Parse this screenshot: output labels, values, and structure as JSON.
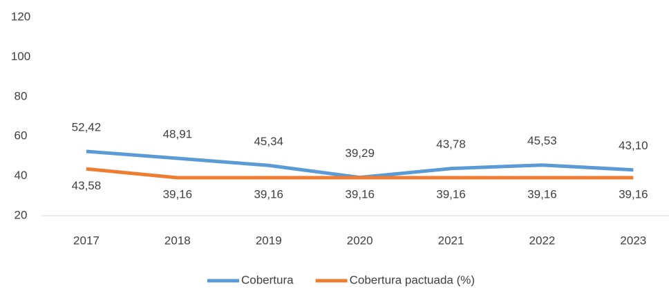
{
  "chart_data": {
    "type": "line",
    "categories": [
      "2017",
      "2018",
      "2019",
      "2020",
      "2021",
      "2022",
      "2023"
    ],
    "series": [
      {
        "name": "Cobertura",
        "color": "#5b9bd5",
        "values": [
          52.42,
          48.91,
          45.34,
          39.29,
          43.78,
          45.53,
          43.1
        ],
        "value_labels": [
          "52,42",
          "48,91",
          "45,34",
          "39,29",
          "43,78",
          "45,53",
          "43,10"
        ]
      },
      {
        "name": "Cobertura pactuada (%)",
        "color": "#ed7d31",
        "values": [
          43.58,
          39.16,
          39.16,
          39.16,
          39.16,
          39.16,
          39.16
        ],
        "value_labels": [
          "43,58",
          "39,16",
          "39,16",
          "39,16",
          "39,16",
          "39,16",
          "39,16"
        ]
      }
    ],
    "ylim": [
      20,
      120
    ],
    "yticks": [
      20,
      40,
      60,
      80,
      100,
      120
    ],
    "grid": false,
    "legend": "bottom"
  }
}
